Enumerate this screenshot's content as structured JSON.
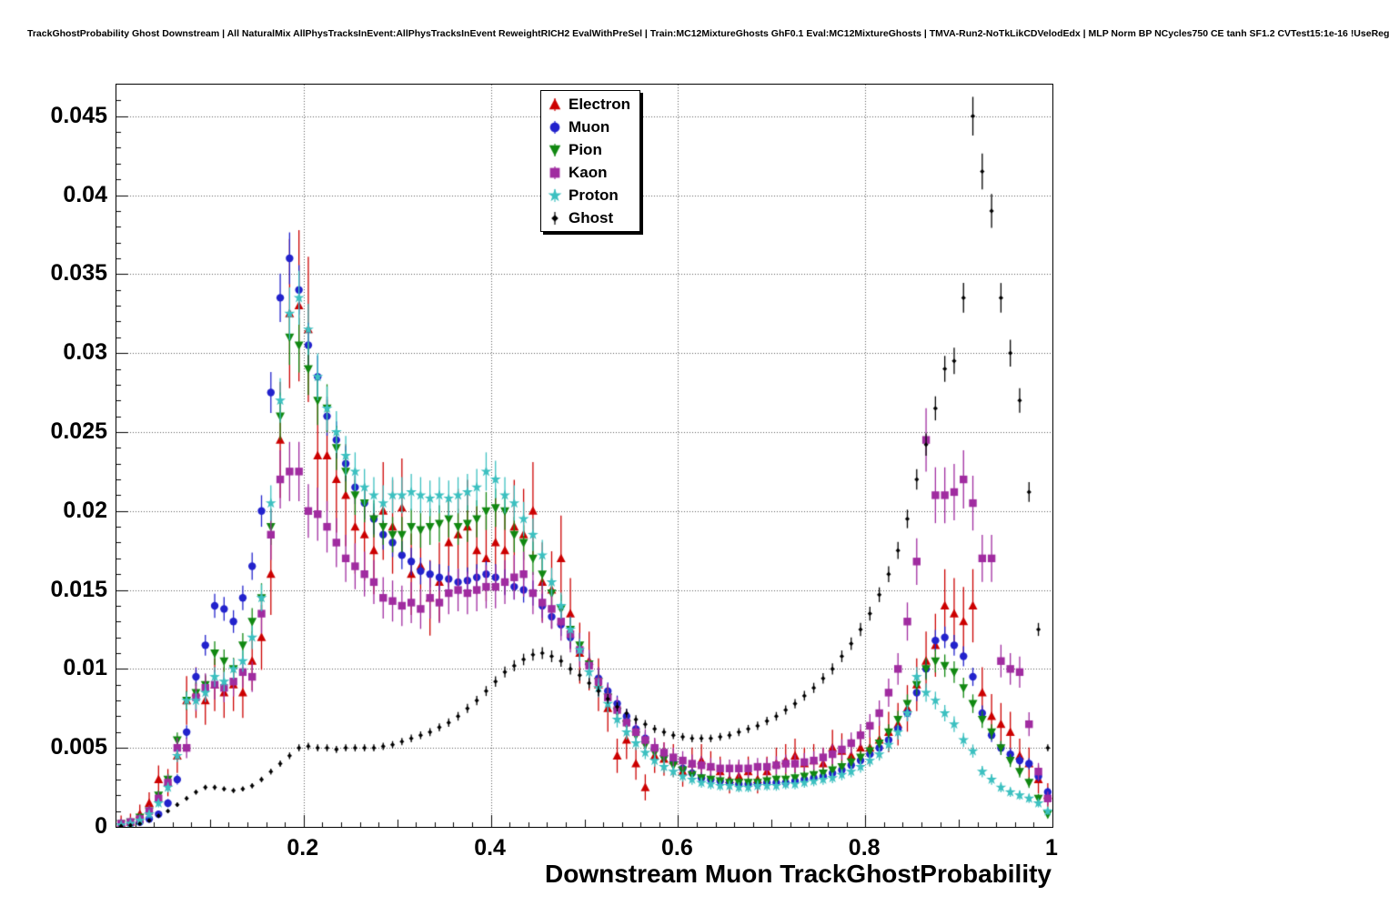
{
  "title": "TrackGhostProbability Ghost Downstream | All NaturalMix AllPhysTracksInEvent:AllPhysTracksInEvent ReweightRICH2 EvalWithPreSel | Train:MC12MixtureGhosts GhF0.1 Eval:MC12MixtureGhosts | TMVA-Run2-NoTkLikCDVelodEdx | MLP Norm BP NCycles750 CE tanh SF1.2 CVTest15:1e-16 !UseReg",
  "chart_data": {
    "type": "scatter",
    "title": "TrackGhostProbability Ghost Downstream",
    "xlabel": "Downstream Muon TrackGhostProbability",
    "ylabel": "",
    "xlim": [
      0,
      1
    ],
    "ylim": [
      0,
      0.047
    ],
    "grid": "dotted",
    "legend_position": "top-center",
    "xticks": [
      0.2,
      0.4,
      0.6,
      0.8,
      1
    ],
    "xtick_labels": [
      "0.2",
      "0.4",
      "0.6",
      "0.8",
      "1"
    ],
    "yticks": [
      0,
      0.005,
      0.01,
      0.015,
      0.02,
      0.025,
      0.03,
      0.035,
      0.04,
      0.045
    ],
    "ytick_labels": [
      "0",
      "0.005",
      "0.01",
      "0.015",
      "0.02",
      "0.025",
      "0.03",
      "0.035",
      "0.04",
      "0.045"
    ],
    "x": [
      0.005,
      0.015,
      0.025,
      0.035,
      0.045,
      0.055,
      0.065,
      0.075,
      0.085,
      0.095,
      0.105,
      0.115,
      0.125,
      0.135,
      0.145,
      0.155,
      0.165,
      0.175,
      0.185,
      0.195,
      0.205,
      0.215,
      0.225,
      0.235,
      0.245,
      0.255,
      0.265,
      0.275,
      0.285,
      0.295,
      0.305,
      0.315,
      0.325,
      0.335,
      0.345,
      0.355,
      0.365,
      0.375,
      0.385,
      0.395,
      0.405,
      0.415,
      0.425,
      0.435,
      0.445,
      0.455,
      0.465,
      0.475,
      0.485,
      0.495,
      0.505,
      0.515,
      0.525,
      0.535,
      0.545,
      0.555,
      0.565,
      0.575,
      0.585,
      0.595,
      0.605,
      0.615,
      0.625,
      0.635,
      0.645,
      0.655,
      0.665,
      0.675,
      0.685,
      0.695,
      0.705,
      0.715,
      0.725,
      0.735,
      0.745,
      0.755,
      0.765,
      0.775,
      0.785,
      0.795,
      0.805,
      0.815,
      0.825,
      0.835,
      0.845,
      0.855,
      0.865,
      0.875,
      0.885,
      0.895,
      0.905,
      0.915,
      0.925,
      0.935,
      0.945,
      0.955,
      0.965,
      0.975,
      0.985,
      0.995
    ],
    "series": [
      {
        "name": "Electron",
        "color": "#cc0000",
        "marker": "triangle-up",
        "marker_size": 4.5,
        "err_frac": 0.13,
        "err_min": 0.0005,
        "values": [
          0.0002,
          0.0003,
          0.0008,
          0.0015,
          0.003,
          0.0028,
          0.0045,
          0.008,
          0.0085,
          0.008,
          0.009,
          0.0085,
          0.009,
          0.0085,
          0.0105,
          0.012,
          0.016,
          0.0245,
          0.0325,
          0.033,
          0.0315,
          0.0235,
          0.0235,
          0.022,
          0.021,
          0.019,
          0.0185,
          0.0175,
          0.02,
          0.019,
          0.0202,
          0.016,
          0.0165,
          0.0145,
          0.0155,
          0.018,
          0.0185,
          0.019,
          0.0175,
          0.017,
          0.018,
          0.0175,
          0.019,
          0.0185,
          0.02,
          0.0155,
          0.015,
          0.017,
          0.0135,
          0.011,
          0.0105,
          0.009,
          0.0075,
          0.0045,
          0.0055,
          0.004,
          0.0025,
          0.0045,
          0.0043,
          0.0042,
          0.0035,
          0.004,
          0.0042,
          0.0038,
          0.0035,
          0.003,
          0.0032,
          0.0035,
          0.003,
          0.0035,
          0.004,
          0.0042,
          0.0045,
          0.004,
          0.0042,
          0.004,
          0.005,
          0.0048,
          0.0045,
          0.005,
          0.005,
          0.0055,
          0.006,
          0.0065,
          0.0075,
          0.009,
          0.0105,
          0.0115,
          0.014,
          0.0135,
          0.013,
          0.014,
          0.0085,
          0.007,
          0.0065,
          0.006,
          0.0045,
          0.004,
          0.003,
          0.002
        ]
      },
      {
        "name": "Muon",
        "color": "#2222cc",
        "marker": "circle",
        "marker_size": 4.2,
        "err_frac": 0.04,
        "err_min": 0.0002,
        "values": [
          0.0001,
          0.0002,
          0.0003,
          0.0005,
          0.0008,
          0.0015,
          0.003,
          0.006,
          0.0095,
          0.0115,
          0.014,
          0.0138,
          0.013,
          0.0145,
          0.0165,
          0.02,
          0.0275,
          0.0335,
          0.036,
          0.034,
          0.0305,
          0.0285,
          0.026,
          0.0245,
          0.023,
          0.0215,
          0.0205,
          0.0195,
          0.0185,
          0.018,
          0.0172,
          0.0168,
          0.0162,
          0.016,
          0.0158,
          0.0157,
          0.0155,
          0.0156,
          0.0158,
          0.016,
          0.0158,
          0.0155,
          0.0152,
          0.015,
          0.0148,
          0.014,
          0.0133,
          0.0128,
          0.012,
          0.0112,
          0.0103,
          0.0094,
          0.0086,
          0.0078,
          0.007,
          0.0062,
          0.0056,
          0.005,
          0.0045,
          0.0041,
          0.0037,
          0.0034,
          0.0031,
          0.003,
          0.0029,
          0.0028,
          0.0027,
          0.0027,
          0.0027,
          0.0028,
          0.0028,
          0.0028,
          0.0029,
          0.003,
          0.0031,
          0.0032,
          0.0034,
          0.0036,
          0.0039,
          0.0042,
          0.0046,
          0.005,
          0.0055,
          0.0062,
          0.0072,
          0.0085,
          0.01,
          0.0118,
          0.012,
          0.0115,
          0.0108,
          0.0095,
          0.0072,
          0.0058,
          0.005,
          0.0046,
          0.0042,
          0.004,
          0.0032,
          0.0022
        ]
      },
      {
        "name": "Pion",
        "color": "#118811",
        "marker": "triangle-down",
        "marker_size": 4.5,
        "err_frac": 0.05,
        "err_min": 0.0002,
        "values": [
          0.0002,
          0.0003,
          0.0006,
          0.001,
          0.002,
          0.003,
          0.0055,
          0.008,
          0.0085,
          0.009,
          0.011,
          0.0105,
          0.01,
          0.0115,
          0.013,
          0.0145,
          0.019,
          0.026,
          0.031,
          0.0305,
          0.029,
          0.027,
          0.0265,
          0.024,
          0.0225,
          0.021,
          0.0205,
          0.0195,
          0.019,
          0.0185,
          0.0185,
          0.019,
          0.0188,
          0.019,
          0.0192,
          0.0195,
          0.019,
          0.0192,
          0.0195,
          0.02,
          0.0202,
          0.02,
          0.0185,
          0.018,
          0.017,
          0.016,
          0.0148,
          0.0138,
          0.0125,
          0.0115,
          0.0103,
          0.0092,
          0.0082,
          0.0073,
          0.0065,
          0.0058,
          0.0052,
          0.0047,
          0.0043,
          0.0039,
          0.0036,
          0.0033,
          0.0031,
          0.003,
          0.0029,
          0.0028,
          0.0028,
          0.0028,
          0.0028,
          0.0029,
          0.003,
          0.003,
          0.0031,
          0.0032,
          0.0033,
          0.0034,
          0.0036,
          0.0038,
          0.0041,
          0.0044,
          0.0048,
          0.0053,
          0.006,
          0.0068,
          0.0078,
          0.009,
          0.01,
          0.0105,
          0.0102,
          0.0098,
          0.0088,
          0.0078,
          0.0068,
          0.006,
          0.005,
          0.0042,
          0.0035,
          0.0028,
          0.0018,
          0.0008
        ]
      },
      {
        "name": "Kaon",
        "color": "#a02ca0",
        "marker": "square",
        "marker_size": 4.2,
        "err_frac": 0.07,
        "err_min": 0.0003,
        "values": [
          0.0002,
          0.0003,
          0.0005,
          0.001,
          0.0018,
          0.0028,
          0.005,
          0.005,
          0.0082,
          0.0088,
          0.009,
          0.0088,
          0.0092,
          0.0098,
          0.0095,
          0.0135,
          0.0185,
          0.022,
          0.0225,
          0.0225,
          0.02,
          0.0198,
          0.019,
          0.018,
          0.017,
          0.0165,
          0.016,
          0.0155,
          0.0145,
          0.0143,
          0.014,
          0.0142,
          0.0138,
          0.0145,
          0.0142,
          0.0148,
          0.015,
          0.0148,
          0.015,
          0.0152,
          0.0152,
          0.0155,
          0.0158,
          0.016,
          0.0148,
          0.0142,
          0.0138,
          0.013,
          0.0122,
          0.0112,
          0.0102,
          0.0092,
          0.0082,
          0.0074,
          0.0066,
          0.006,
          0.0055,
          0.005,
          0.0047,
          0.0044,
          0.0042,
          0.004,
          0.0039,
          0.0038,
          0.0037,
          0.0037,
          0.0037,
          0.0037,
          0.0038,
          0.0038,
          0.0039,
          0.004,
          0.004,
          0.0041,
          0.0042,
          0.0044,
          0.0046,
          0.0049,
          0.0053,
          0.0058,
          0.0064,
          0.0072,
          0.0085,
          0.01,
          0.013,
          0.0168,
          0.0245,
          0.021,
          0.021,
          0.0212,
          0.022,
          0.0205,
          0.017,
          0.017,
          0.0105,
          0.01,
          0.0098,
          0.0065,
          0.0035,
          0.0018
        ]
      },
      {
        "name": "Proton",
        "color": "#3cc0c0",
        "marker": "star",
        "marker_size": 4.8,
        "err_frac": 0.045,
        "err_min": 0.0002,
        "values": [
          0.0001,
          0.0002,
          0.0004,
          0.0008,
          0.0015,
          0.0025,
          0.0045,
          0.008,
          0.008,
          0.0085,
          0.0095,
          0.0092,
          0.01,
          0.0105,
          0.012,
          0.0145,
          0.0205,
          0.027,
          0.0325,
          0.0335,
          0.0315,
          0.0285,
          0.0265,
          0.025,
          0.0235,
          0.0225,
          0.0215,
          0.021,
          0.0205,
          0.021,
          0.021,
          0.0212,
          0.021,
          0.0208,
          0.021,
          0.0208,
          0.021,
          0.0212,
          0.0215,
          0.0225,
          0.022,
          0.021,
          0.0205,
          0.0195,
          0.0185,
          0.0172,
          0.0155,
          0.014,
          0.0125,
          0.0112,
          0.0098,
          0.0088,
          0.0078,
          0.0068,
          0.006,
          0.0053,
          0.0047,
          0.0042,
          0.0038,
          0.0035,
          0.0032,
          0.003,
          0.0028,
          0.0027,
          0.0026,
          0.0026,
          0.0025,
          0.0025,
          0.0026,
          0.0026,
          0.0026,
          0.0027,
          0.0027,
          0.0028,
          0.0029,
          0.003,
          0.0031,
          0.0033,
          0.0035,
          0.0038,
          0.0042,
          0.0046,
          0.0052,
          0.006,
          0.0072,
          0.0095,
          0.0085,
          0.008,
          0.0072,
          0.0065,
          0.0055,
          0.0048,
          0.0035,
          0.003,
          0.0025,
          0.0022,
          0.002,
          0.0018,
          0.0015,
          0.001
        ]
      },
      {
        "name": "Ghost",
        "color": "#000000",
        "marker": "diamond",
        "marker_size": 2.6,
        "err_frac": 0.025,
        "err_min": 0.0001,
        "values": [
          5e-05,
          0.0001,
          0.0002,
          0.0004,
          0.0007,
          0.001,
          0.0014,
          0.0018,
          0.0022,
          0.0025,
          0.0025,
          0.0024,
          0.0023,
          0.0024,
          0.0026,
          0.003,
          0.0035,
          0.004,
          0.0045,
          0.005,
          0.0051,
          0.005,
          0.005,
          0.0049,
          0.005,
          0.005,
          0.005,
          0.005,
          0.0051,
          0.0052,
          0.0054,
          0.0056,
          0.0058,
          0.006,
          0.0063,
          0.0066,
          0.007,
          0.0075,
          0.008,
          0.0086,
          0.0092,
          0.0098,
          0.0102,
          0.0106,
          0.0109,
          0.011,
          0.0108,
          0.0105,
          0.01,
          0.0096,
          0.0091,
          0.0086,
          0.0081,
          0.0076,
          0.0072,
          0.0068,
          0.0065,
          0.0062,
          0.006,
          0.0058,
          0.0057,
          0.0056,
          0.0056,
          0.0056,
          0.0057,
          0.0058,
          0.006,
          0.0062,
          0.0064,
          0.0067,
          0.007,
          0.0074,
          0.0078,
          0.0083,
          0.0088,
          0.0094,
          0.01,
          0.0108,
          0.0116,
          0.0125,
          0.0135,
          0.0147,
          0.016,
          0.0175,
          0.0195,
          0.022,
          0.0242,
          0.0265,
          0.029,
          0.0295,
          0.0335,
          0.045,
          0.0415,
          0.039,
          0.0335,
          0.03,
          0.027,
          0.0212,
          0.0125,
          0.005
        ]
      }
    ]
  }
}
